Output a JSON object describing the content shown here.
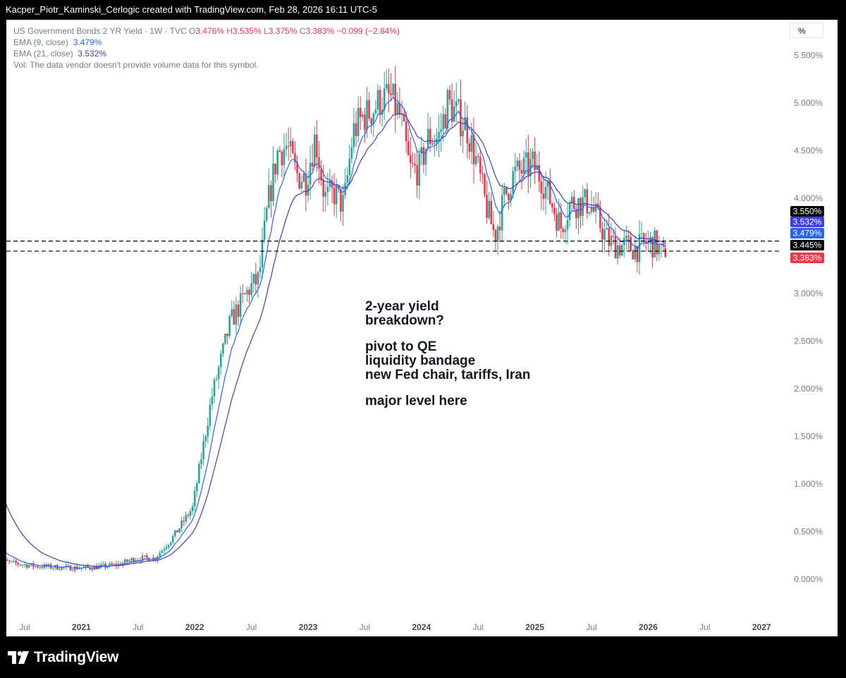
{
  "header": {
    "title": "Kacper_Piotr_Kaminski_Cerlogic created with TradingView.com, Feb 28, 2026 16:11 UTC-5"
  },
  "legend": {
    "symbol": "US Government Bonds 2 YR Yield · 1W · TVC",
    "o_label": "O",
    "o_value": "3.476%",
    "h_label": "H",
    "h_value": "3.535%",
    "l_label": "L",
    "l_value": "3.375%",
    "c_label": "C",
    "c_value": "3.383%",
    "change": "−0.099 (−2.84%)",
    "ema9_label": "EMA (9, close)",
    "ema9_value": "3.479%",
    "ema21_label": "EMA (21, close)",
    "ema21_value": "3.532%",
    "vol_note": "Vol: The data vendor doesn't provide volume data for this symbol."
  },
  "scale_button": "%",
  "annotation": {
    "line1": "2-year yield",
    "line2": "breakdown?",
    "line3": "pivot to QE",
    "line4": "liquidity bandage",
    "line5": "new Fed chair, tariffs, Iran",
    "line6": "major level here"
  },
  "footer": {
    "brand": "TradingView"
  },
  "colors": {
    "up": "#26a69a",
    "down": "#f23645",
    "ema9": "#2962ff",
    "ema21": "#3f3fb0",
    "grid": "#f0f3fa",
    "axis_text": "#787b86"
  },
  "chart_data": {
    "type": "candlestick",
    "symbol": "US Government Bonds 2 YR Yield",
    "interval": "1W",
    "ylim": [
      -0.2,
      5.8
    ],
    "y_ticks": [
      "5.500%",
      "5.000%",
      "4.500%",
      "4.000%",
      "3.500%",
      "3.000%",
      "2.500%",
      "2.000%",
      "1.500%",
      "1.000%",
      "0.500%",
      "0.000%"
    ],
    "y_tick_values": [
      5.5,
      5.0,
      4.5,
      4.0,
      3.5,
      3.0,
      2.5,
      2.0,
      1.5,
      1.0,
      0.5,
      0.0
    ],
    "x_ticks": [
      "Jul",
      "2021",
      "Jul",
      "2022",
      "Jul",
      "2023",
      "Jul",
      "2024",
      "Jul",
      "2025",
      "Jul",
      "2026",
      "Jul",
      "2027"
    ],
    "x_tick_dates": [
      "2020-07",
      "2021-01",
      "2021-07",
      "2022-01",
      "2022-07",
      "2023-01",
      "2023-07",
      "2024-01",
      "2024-07",
      "2025-01",
      "2025-07",
      "2026-01",
      "2026-07",
      "2027-01"
    ],
    "x_bold": [
      false,
      true,
      false,
      true,
      false,
      true,
      false,
      true,
      false,
      true,
      false,
      true,
      false,
      true
    ],
    "anchors": [
      [
        "2020-04",
        0.2
      ],
      [
        "2020-08",
        0.14
      ],
      [
        "2020-12",
        0.12
      ],
      [
        "2021-02",
        0.12
      ],
      [
        "2021-05",
        0.15
      ],
      [
        "2021-07",
        0.22
      ],
      [
        "2021-09",
        0.22
      ],
      [
        "2021-11",
        0.45
      ],
      [
        "2022-01",
        0.75
      ],
      [
        "2022-03",
        1.9
      ],
      [
        "2022-05",
        2.7
      ],
      [
        "2022-07",
        3.05
      ],
      [
        "2022-08",
        3.15
      ],
      [
        "2022-09",
        3.95
      ],
      [
        "2022-10",
        4.48
      ],
      [
        "2022-11",
        4.55
      ],
      [
        "2022-12",
        4.25
      ],
      [
        "2023-01",
        4.2
      ],
      [
        "2023-02",
        4.65
      ],
      [
        "2023-03",
        4.0
      ],
      [
        "2023-04",
        4.05
      ],
      [
        "2023-05",
        3.92
      ],
      [
        "2023-06",
        4.7
      ],
      [
        "2023-07",
        4.85
      ],
      [
        "2023-08",
        4.92
      ],
      [
        "2023-09",
        5.05
      ],
      [
        "2023-10",
        5.05
      ],
      [
        "2023-11",
        4.85
      ],
      [
        "2023-12",
        4.3
      ],
      [
        "2024-01",
        4.3
      ],
      [
        "2024-02",
        4.65
      ],
      [
        "2024-03",
        4.62
      ],
      [
        "2024-04",
        5.0
      ],
      [
        "2024-05",
        4.88
      ],
      [
        "2024-06",
        4.75
      ],
      [
        "2024-07",
        4.4
      ],
      [
        "2024-08",
        3.95
      ],
      [
        "2024-09",
        3.6
      ],
      [
        "2024-10",
        4.0
      ],
      [
        "2024-11",
        4.25
      ],
      [
        "2024-12",
        4.3
      ],
      [
        "2025-01",
        4.35
      ],
      [
        "2025-02",
        4.2
      ],
      [
        "2025-03",
        3.95
      ],
      [
        "2025-04",
        3.7
      ],
      [
        "2025-05",
        3.95
      ],
      [
        "2025-06",
        3.95
      ],
      [
        "2025-07",
        3.95
      ],
      [
        "2025-08",
        3.75
      ],
      [
        "2025-09",
        3.55
      ],
      [
        "2025-10",
        3.5
      ],
      [
        "2025-11",
        3.5
      ],
      [
        "2025-12",
        3.47
      ],
      [
        "2026-01",
        3.53
      ],
      [
        "2026-02-01",
        3.52
      ],
      [
        "2026-02-27",
        3.383
      ]
    ],
    "last_candle": {
      "open": 3.476,
      "high": 3.535,
      "low": 3.375,
      "close": 3.383
    },
    "series": [
      {
        "name": "EMA (9, close)",
        "value": 3.479,
        "color": "#2962ff"
      },
      {
        "name": "EMA (21, close)",
        "value": 3.532,
        "color": "#3f3fb0"
      }
    ],
    "horizontal_lines": [
      3.55,
      3.445
    ],
    "price_labels": [
      {
        "text": "3.550%",
        "value": 3.55,
        "bg": "#000000",
        "fg": "#ffffff"
      },
      {
        "text": "3.532%",
        "value": 3.532,
        "bg": "#3f3fe0",
        "fg": "#ffffff"
      },
      {
        "text": "3.479%",
        "value": 3.479,
        "bg": "#2962ff",
        "fg": "#ffffff"
      },
      {
        "text": "3.445%",
        "value": 3.445,
        "bg": "#000000",
        "fg": "#ffffff"
      },
      {
        "text": "3.383%",
        "value": 3.383,
        "bg": "#f23645",
        "fg": "#ffffff"
      }
    ],
    "grid": false,
    "legend_position": "top-left"
  }
}
